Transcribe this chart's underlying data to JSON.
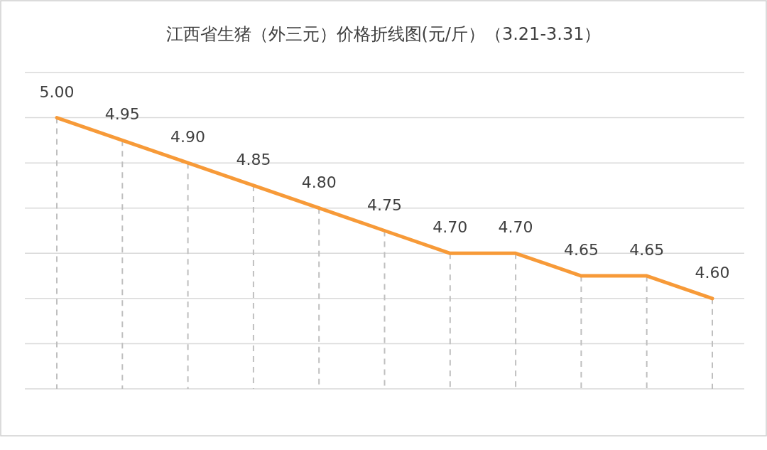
{
  "chart_data": {
    "type": "line",
    "title": "江西省生猪（外三元）价格折线图(元/斤）（3.21-3.31）",
    "categories": [
      null,
      null,
      null,
      null,
      null,
      null,
      null,
      null,
      null,
      null,
      null
    ],
    "series": [
      {
        "color": "#f79a38",
        "values": [
          5.0,
          4.95,
          4.9,
          4.85,
          4.8,
          4.75,
          4.7,
          4.7,
          4.65,
          4.65,
          4.6
        ],
        "value_labels": [
          "5.00",
          "4.95",
          "4.90",
          "4.85",
          "4.80",
          "4.75",
          "4.70",
          "4.70",
          "4.65",
          "4.65",
          "4.60"
        ]
      }
    ],
    "ylim": [
      4.4,
      5.1
    ],
    "yticks": [
      {
        "value": 4.4,
        "label": null
      },
      {
        "value": 4.5,
        "label": null
      },
      {
        "value": 4.6,
        "label": null
      },
      {
        "value": 4.7,
        "label": null
      },
      {
        "value": 4.8,
        "label": null
      },
      {
        "value": 4.9,
        "label": null
      },
      {
        "value": 5.0,
        "label": null
      },
      {
        "value": 5.1,
        "label": null
      }
    ],
    "grid": true,
    "marker": "none",
    "line_style": "solid"
  }
}
